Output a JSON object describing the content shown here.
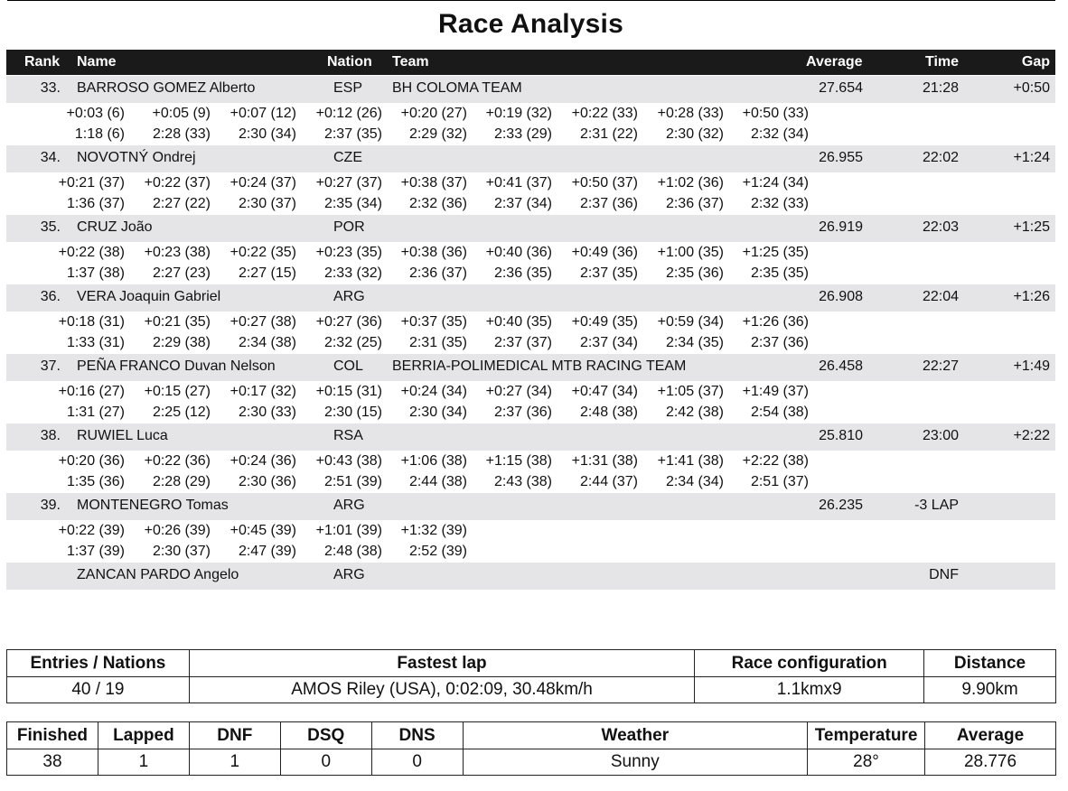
{
  "title": "Race Analysis",
  "header": {
    "rank": "Rank",
    "name": "Name",
    "nation": "Nation",
    "team": "Team",
    "average": "Average",
    "time": "Time",
    "gap": "Gap"
  },
  "riders": [
    {
      "rank": "33.",
      "name": "BARROSO GOMEZ Alberto",
      "nation": "ESP",
      "team": "BH COLOMA TEAM",
      "average": "27.654",
      "time": "21:28",
      "gap": "+0:50",
      "gaps": [
        "+0:03 (6)",
        "+0:05 (9)",
        "+0:07 (12)",
        "+0:12 (26)",
        "+0:20 (27)",
        "+0:19 (32)",
        "+0:22 (33)",
        "+0:28 (33)",
        "+0:50 (33)"
      ],
      "laps": [
        "1:18 (6)",
        "2:28 (33)",
        "2:30 (34)",
        "2:37 (35)",
        "2:29 (32)",
        "2:33 (29)",
        "2:31 (22)",
        "2:30 (32)",
        "2:32 (34)"
      ]
    },
    {
      "rank": "34.",
      "name": "NOVOTNÝ Ondrej",
      "nation": "CZE",
      "team": "",
      "average": "26.955",
      "time": "22:02",
      "gap": "+1:24",
      "gaps": [
        "+0:21 (37)",
        "+0:22 (37)",
        "+0:24 (37)",
        "+0:27 (37)",
        "+0:38 (37)",
        "+0:41 (37)",
        "+0:50 (37)",
        "+1:02 (36)",
        "+1:24 (34)"
      ],
      "laps": [
        "1:36 (37)",
        "2:27 (22)",
        "2:30 (37)",
        "2:35 (34)",
        "2:32 (36)",
        "2:37 (34)",
        "2:37 (36)",
        "2:36 (37)",
        "2:32 (33)"
      ]
    },
    {
      "rank": "35.",
      "name": "CRUZ João",
      "nation": "POR",
      "team": "",
      "average": "26.919",
      "time": "22:03",
      "gap": "+1:25",
      "gaps": [
        "+0:22 (38)",
        "+0:23 (38)",
        "+0:22 (35)",
        "+0:23 (35)",
        "+0:38 (36)",
        "+0:40 (36)",
        "+0:49 (36)",
        "+1:00 (35)",
        "+1:25 (35)"
      ],
      "laps": [
        "1:37 (38)",
        "2:27 (23)",
        "2:27 (15)",
        "2:33 (32)",
        "2:36 (37)",
        "2:36 (35)",
        "2:37 (35)",
        "2:35 (36)",
        "2:35 (35)"
      ]
    },
    {
      "rank": "36.",
      "name": "VERA Joaquin Gabriel",
      "nation": "ARG",
      "team": "",
      "average": "26.908",
      "time": "22:04",
      "gap": "+1:26",
      "gaps": [
        "+0:18 (31)",
        "+0:21 (35)",
        "+0:27 (38)",
        "+0:27 (36)",
        "+0:37 (35)",
        "+0:40 (35)",
        "+0:49 (35)",
        "+0:59 (34)",
        "+1:26 (36)"
      ],
      "laps": [
        "1:33 (31)",
        "2:29 (38)",
        "2:34 (38)",
        "2:32 (25)",
        "2:31 (35)",
        "2:37 (37)",
        "2:37 (34)",
        "2:34 (35)",
        "2:37 (36)"
      ]
    },
    {
      "rank": "37.",
      "name": "PEÑA FRANCO Duvan Nelson",
      "nation": "COL",
      "team": "BERRIA-POLIMEDICAL MTB RACING TEAM",
      "average": "26.458",
      "time": "22:27",
      "gap": "+1:49",
      "gaps": [
        "+0:16 (27)",
        "+0:15 (27)",
        "+0:17 (32)",
        "+0:15 (31)",
        "+0:24 (34)",
        "+0:27 (34)",
        "+0:47 (34)",
        "+1:05 (37)",
        "+1:49 (37)"
      ],
      "laps": [
        "1:31 (27)",
        "2:25 (12)",
        "2:30 (33)",
        "2:30 (15)",
        "2:30 (34)",
        "2:37 (36)",
        "2:48 (38)",
        "2:42 (38)",
        "2:54 (38)"
      ]
    },
    {
      "rank": "38.",
      "name": "RUWIEL Luca",
      "nation": "RSA",
      "team": "",
      "average": "25.810",
      "time": "23:00",
      "gap": "+2:22",
      "gaps": [
        "+0:20 (36)",
        "+0:22 (36)",
        "+0:24 (36)",
        "+0:43 (38)",
        "+1:06 (38)",
        "+1:15 (38)",
        "+1:31 (38)",
        "+1:41 (38)",
        "+2:22 (38)"
      ],
      "laps": [
        "1:35 (36)",
        "2:28 (29)",
        "2:30 (36)",
        "2:51 (39)",
        "2:44 (38)",
        "2:43 (38)",
        "2:44 (37)",
        "2:34 (34)",
        "2:51 (37)"
      ]
    },
    {
      "rank": "39.",
      "name": "MONTENEGRO Tomas",
      "nation": "ARG",
      "team": "",
      "average": "26.235",
      "time": "-3 LAP",
      "gap": "",
      "gaps": [
        "+0:22 (39)",
        "+0:26 (39)",
        "+0:45 (39)",
        "+1:01 (39)",
        "+1:32 (39)"
      ],
      "laps": [
        "1:37 (39)",
        "2:30 (37)",
        "2:47 (39)",
        "2:48 (38)",
        "2:52 (39)"
      ]
    },
    {
      "rank": "",
      "name": "ZANCAN PARDO Angelo",
      "nation": "ARG",
      "team": "",
      "average": "",
      "time": "DNF",
      "gap": "",
      "gaps": [],
      "laps": []
    }
  ],
  "summary1": {
    "headers": [
      "Entries / Nations",
      "Fastest lap",
      "Race configuration",
      "Distance"
    ],
    "values": [
      "40 / 19",
      "AMOS Riley (USA), 0:02:09, 30.48km/h",
      "1.1kmx9",
      "9.90km"
    ]
  },
  "summary2": {
    "headers": [
      "Finished",
      "Lapped",
      "DNF",
      "DSQ",
      "DNS",
      "Weather",
      "Temperature",
      "Average"
    ],
    "values": [
      "38",
      "1",
      "1",
      "0",
      "0",
      "Sunny",
      "28°",
      "28.776"
    ]
  }
}
